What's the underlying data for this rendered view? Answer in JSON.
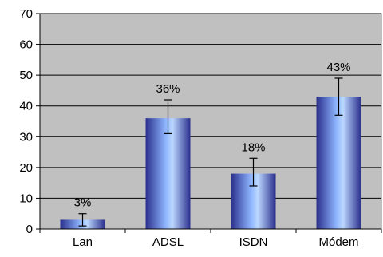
{
  "chart_data": {
    "type": "bar",
    "categories": [
      "Lan",
      "ADSL",
      "ISDN",
      "Módem"
    ],
    "values": [
      3,
      36,
      18,
      43
    ],
    "data_labels": [
      "3%",
      "36%",
      "18%",
      "43%"
    ],
    "error_bars": [
      {
        "low": 1,
        "high": 5
      },
      {
        "low": 31,
        "high": 42
      },
      {
        "low": 14,
        "high": 23
      },
      {
        "low": 37,
        "high": 49
      }
    ],
    "yticks": [
      0,
      10,
      20,
      30,
      40,
      50,
      60,
      70
    ],
    "ylim": [
      0,
      70
    ],
    "title": "",
    "xlabel": "",
    "ylabel": "",
    "grid": true,
    "legend": "none",
    "colors": {
      "plot_bg": "#c0c0c0",
      "bar_dark": "#2a2f8c",
      "bar_mid": "#8fb6ff",
      "bar_light": "#bcd8ff",
      "gridline": "#000000"
    }
  }
}
